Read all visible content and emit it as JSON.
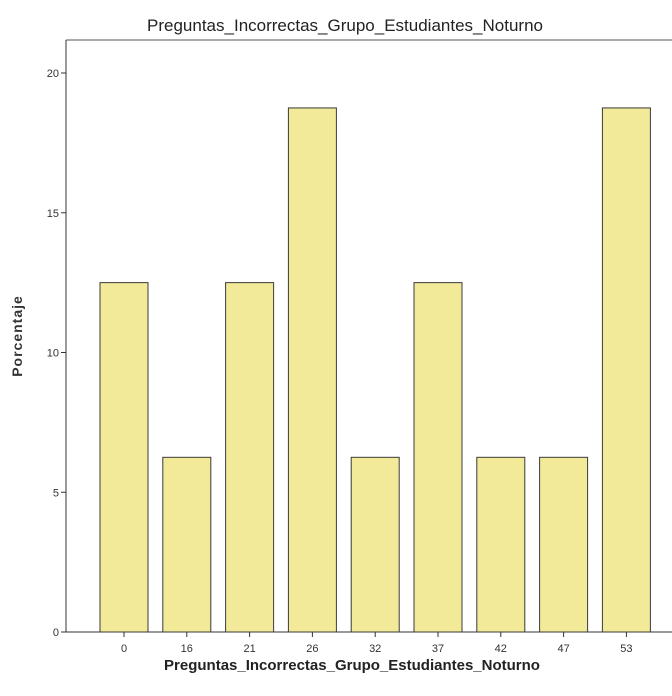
{
  "chart_data": {
    "type": "bar",
    "title": "Preguntas_Incorrectas_Grupo_Estudiantes_Noturno",
    "xlabel": "Preguntas_Incorrectas_Grupo_Estudiantes_Noturno",
    "ylabel": "Porcentaje",
    "categories": [
      "0",
      "16",
      "21",
      "26",
      "32",
      "37",
      "42",
      "47",
      "53"
    ],
    "values": [
      12.5,
      6.25,
      12.5,
      18.75,
      6.25,
      12.5,
      6.25,
      6.25,
      18.75
    ],
    "ylim": [
      0,
      21
    ],
    "yticks": [
      0,
      5,
      10,
      15,
      20
    ],
    "grid": false,
    "bar_color": "#f2ea99"
  }
}
